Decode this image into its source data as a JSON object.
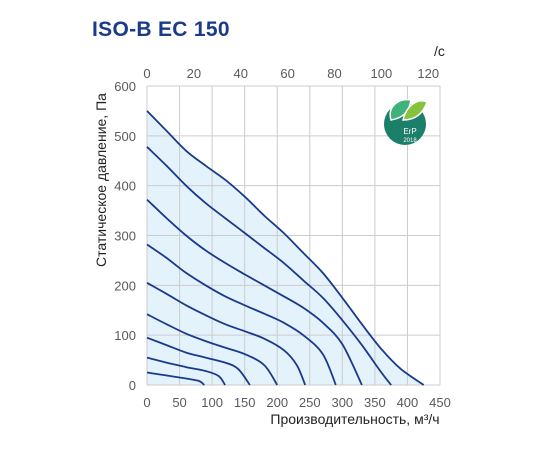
{
  "chart_data": {
    "type": "line",
    "title": "ISO-B EC 150",
    "xlabel": "Производительность, м³/ч",
    "ylabel": "Статическое давление, Па",
    "top_axis_label": "/с",
    "xlim": [
      0,
      450
    ],
    "ylim": [
      0,
      600
    ],
    "top_xlim": [
      0,
      125
    ],
    "x_ticks": [
      "0",
      "50",
      "100",
      "150",
      "200",
      "250",
      "300",
      "350",
      "400",
      "450"
    ],
    "y_ticks": [
      "0",
      "100",
      "200",
      "300",
      "400",
      "500",
      "600"
    ],
    "top_ticks": [
      "0",
      "20",
      "40",
      "60",
      "80",
      "100",
      "120"
    ],
    "grid": true,
    "shaded_region": true,
    "colors": {
      "title": "#1a3a8a",
      "curve": "#1a3a8a",
      "fill": "#e4f2fb",
      "grid": "#cccccc",
      "badge": "#1b7f6a"
    },
    "series": [
      {
        "x": [
          0,
          30,
          60,
          90,
          120,
          150,
          180,
          210,
          240,
          270,
          300,
          330,
          360,
          390,
          425
        ],
        "y": [
          550,
          510,
          470,
          440,
          412,
          378,
          340,
          305,
          265,
          225,
          175,
          122,
          72,
          32,
          0
        ]
      },
      {
        "x": [
          0,
          30,
          60,
          90,
          120,
          150,
          180,
          210,
          240,
          270,
          300,
          330,
          360,
          375
        ],
        "y": [
          478,
          440,
          400,
          365,
          335,
          305,
          275,
          245,
          210,
          175,
          130,
          80,
          25,
          0
        ]
      },
      {
        "x": [
          0,
          30,
          60,
          90,
          120,
          150,
          180,
          210,
          240,
          270,
          300,
          330
        ],
        "y": [
          372,
          335,
          300,
          270,
          245,
          222,
          200,
          178,
          155,
          125,
          82,
          0
        ]
      },
      {
        "x": [
          0,
          30,
          60,
          90,
          120,
          150,
          180,
          210,
          240,
          270,
          290
        ],
        "y": [
          282,
          255,
          225,
          200,
          178,
          160,
          143,
          125,
          100,
          62,
          0
        ]
      },
      {
        "x": [
          0,
          30,
          60,
          90,
          120,
          150,
          180,
          210,
          230,
          243
        ],
        "y": [
          205,
          183,
          160,
          140,
          122,
          108,
          93,
          70,
          40,
          0
        ]
      },
      {
        "x": [
          0,
          30,
          60,
          90,
          120,
          150,
          180,
          200
        ],
        "y": [
          142,
          122,
          103,
          88,
          75,
          62,
          40,
          0
        ]
      },
      {
        "x": [
          0,
          30,
          60,
          90,
          120,
          140,
          158
        ],
        "y": [
          95,
          80,
          65,
          55,
          45,
          32,
          0
        ]
      },
      {
        "x": [
          0,
          30,
          60,
          90,
          110,
          120
        ],
        "y": [
          55,
          45,
          36,
          28,
          18,
          0
        ]
      },
      {
        "x": [
          0,
          20,
          40,
          60,
          80,
          88
        ],
        "y": [
          25,
          21,
          17,
          13,
          8,
          0
        ]
      }
    ]
  },
  "badge": {
    "text": "ErP",
    "year": "2018"
  }
}
